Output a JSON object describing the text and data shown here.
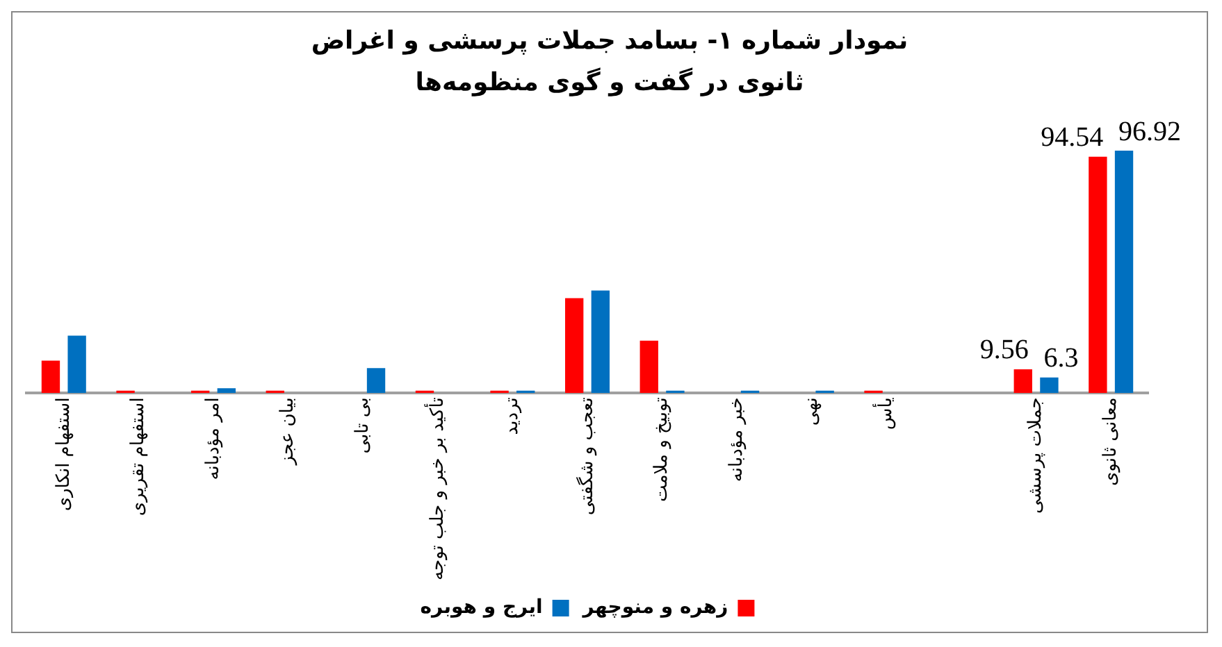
{
  "chart_data": {
    "type": "bar",
    "title": "نمودار شماره ۱- بسامد جملات پرسشی و اغراض ثانوی در گفت و گوی منظومه‌ها",
    "categories": [
      "استفهام انکاری",
      "استفهام تقریری",
      "امر مؤدبانه",
      "بیان عجز",
      "بی تابی",
      "تأکید بر خبر و جلب توجه",
      "تردید",
      "تعجب و شگفتی",
      "توبیخ و ملامت",
      "خبر مؤدبانه",
      "نهی",
      "یأس",
      null,
      "جملات پرسشی",
      "معانی ثانوی"
    ],
    "series": [
      {
        "name": "زهره و منوچهر",
        "color": "#ff0000",
        "values": [
          13,
          1,
          1,
          1,
          0,
          1,
          1,
          38,
          21,
          0,
          0,
          1,
          null,
          9.56,
          94.54
        ],
        "value_labels": [
          null,
          null,
          null,
          null,
          null,
          null,
          null,
          null,
          null,
          null,
          null,
          null,
          null,
          "9.56",
          "94.54"
        ]
      },
      {
        "name": "ایرج و هوبره",
        "color": "#0070c0",
        "values": [
          23,
          0,
          2,
          0,
          10,
          0,
          1,
          41,
          1,
          1,
          1,
          0,
          null,
          6.3,
          96.92
        ],
        "value_labels": [
          null,
          null,
          null,
          null,
          null,
          null,
          null,
          null,
          null,
          null,
          null,
          null,
          null,
          "6.3",
          "96.92"
        ]
      }
    ],
    "grid": false,
    "legend": "bottom"
  }
}
